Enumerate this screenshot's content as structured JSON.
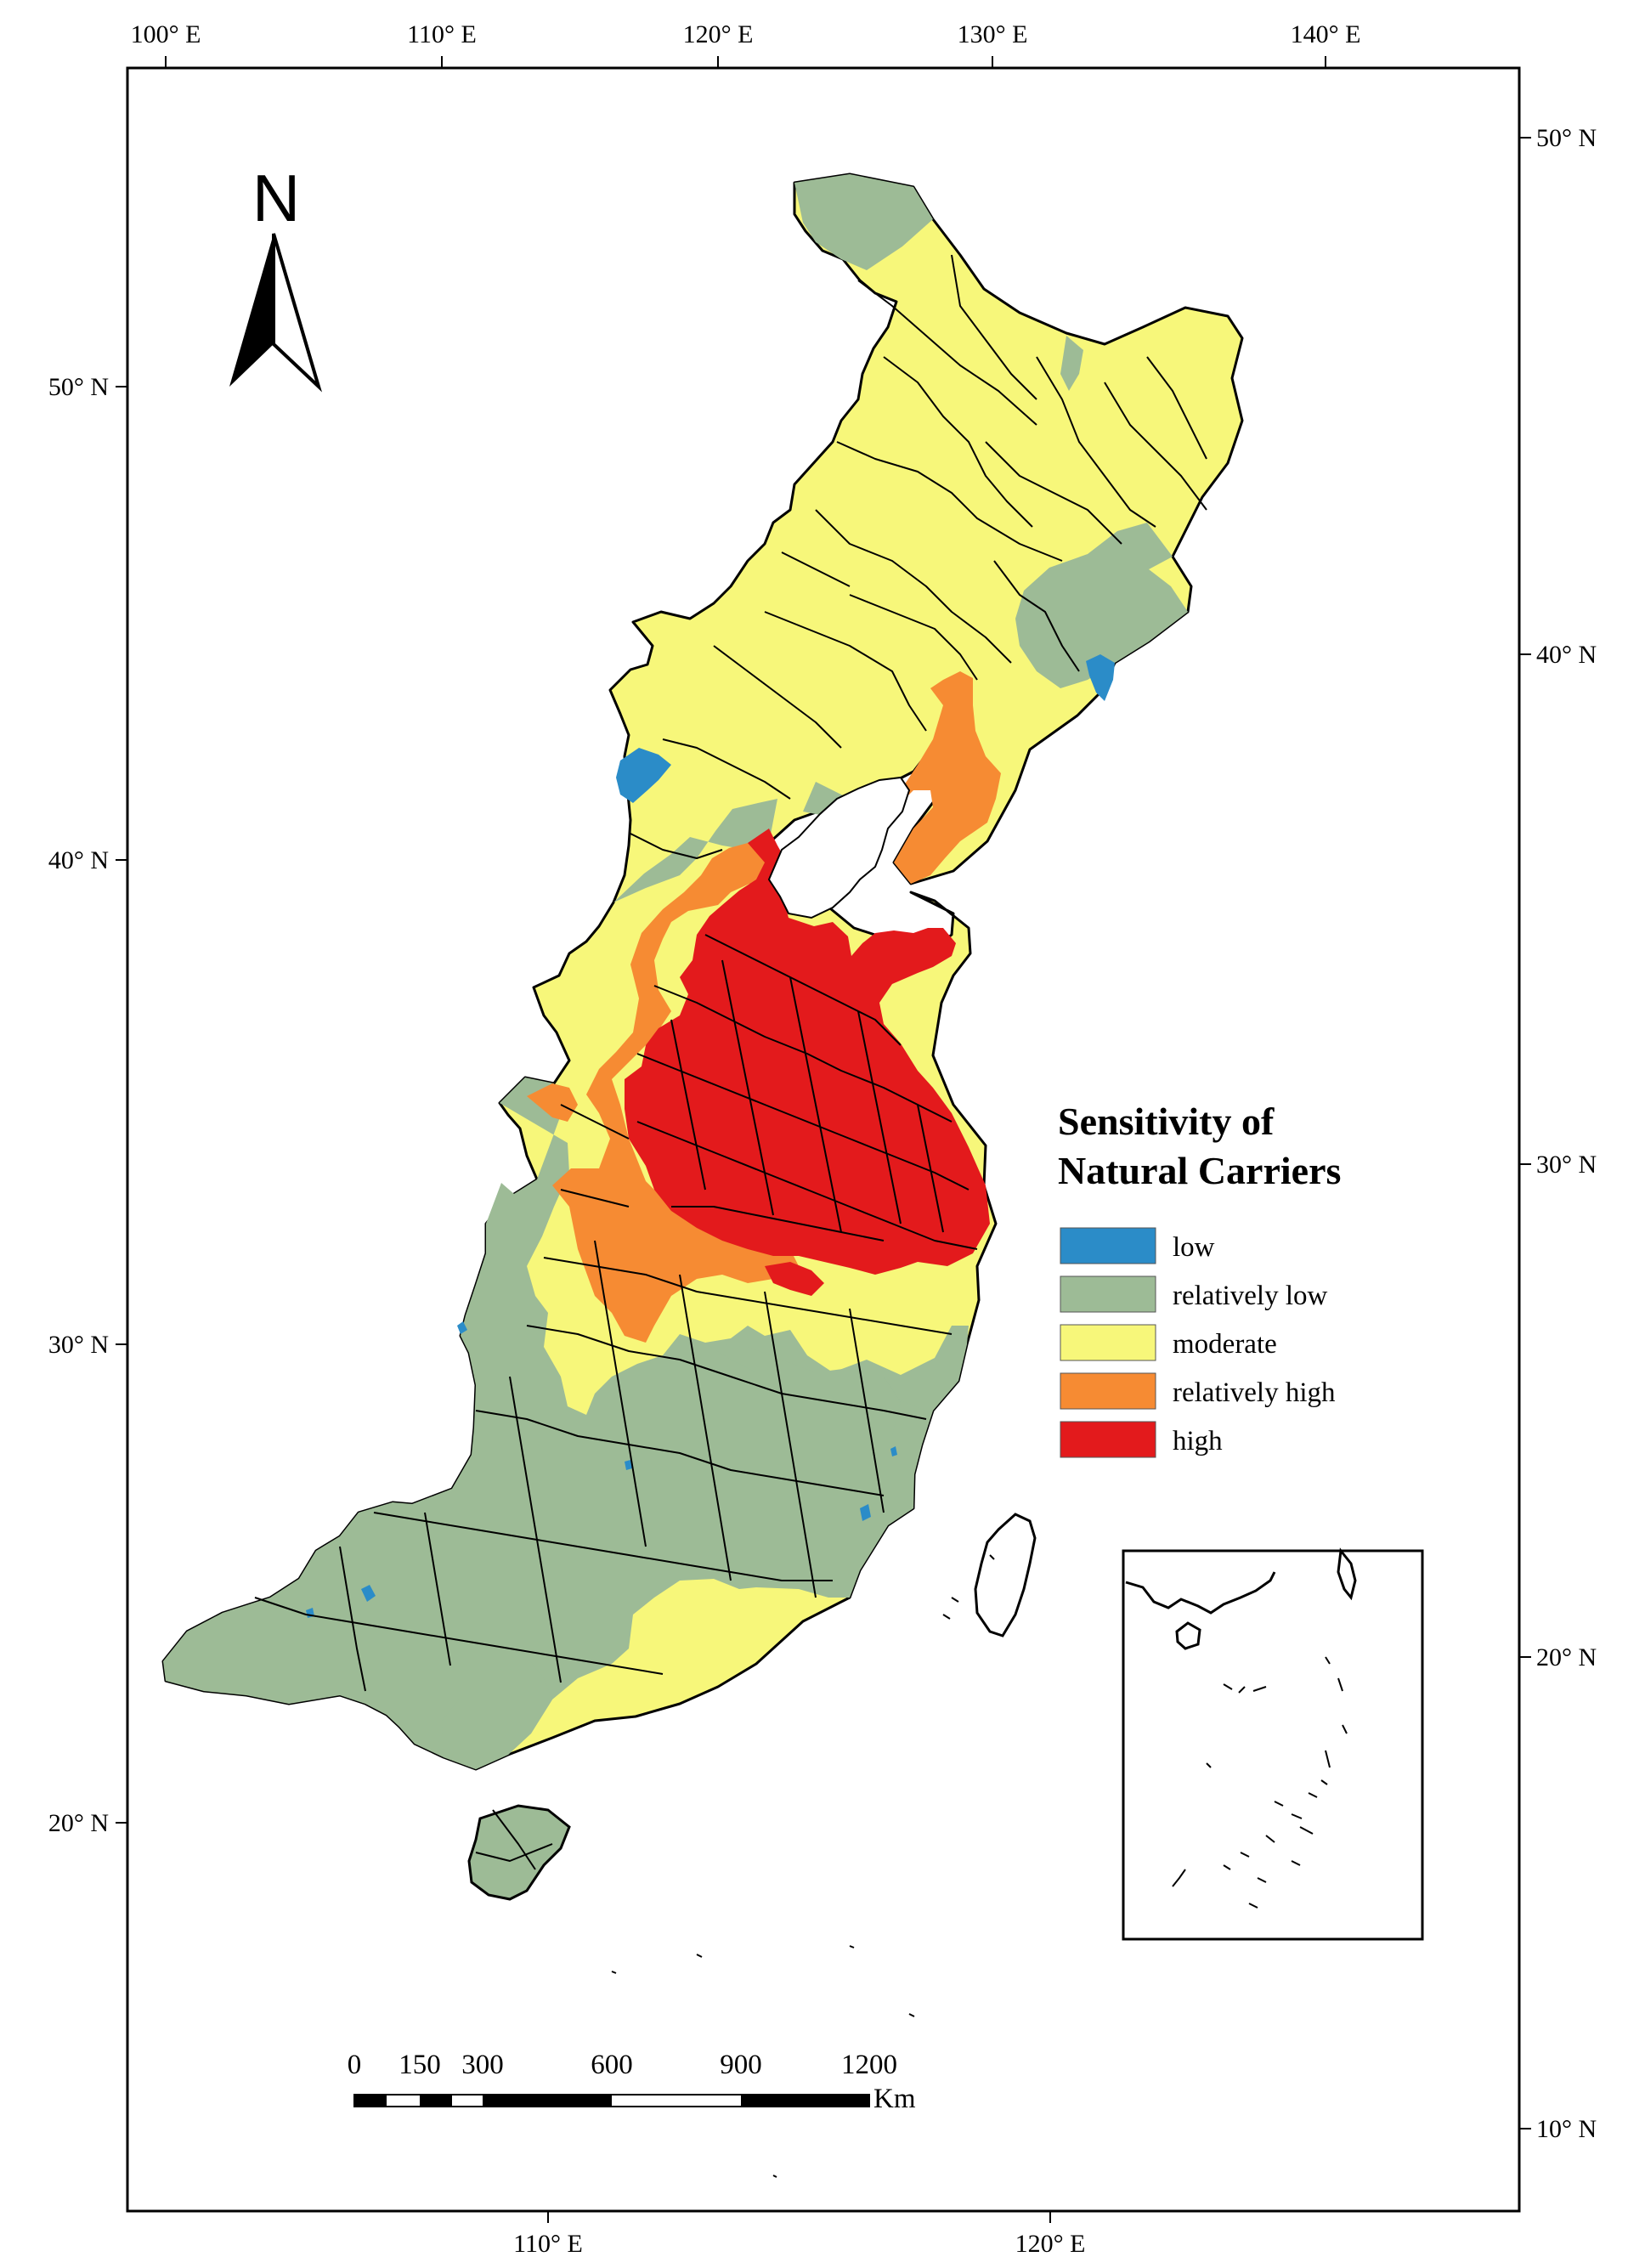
{
  "top_ticks": [
    "100° E",
    "110° E",
    "120° E",
    "130° E",
    "140° E"
  ],
  "bottom_ticks": [
    "110° E",
    "120° E"
  ],
  "left_ticks": [
    "50° N",
    "40° N",
    "30° N",
    "20° N"
  ],
  "right_ticks": [
    "50° N",
    "40° N",
    "30° N",
    "20° N",
    "10° N"
  ],
  "north_arrow": {
    "label": "N",
    "icon": "north-arrow-icon"
  },
  "legend": {
    "title_line1": "Sensitivity of",
    "title_line2": "Natural Carriers",
    "items": [
      {
        "label": "low",
        "color": "#2b8cc8"
      },
      {
        "label": "relatively low",
        "color": "#9dbb96"
      },
      {
        "label": "moderate",
        "color": "#f7f77a"
      },
      {
        "label": "relatively high",
        "color": "#f68b33"
      },
      {
        "label": "high",
        "color": "#e31a1c"
      }
    ]
  },
  "scale_bar": {
    "labels": [
      "0",
      "150",
      "300",
      "600",
      "900",
      "1200"
    ],
    "unit": "Km"
  }
}
